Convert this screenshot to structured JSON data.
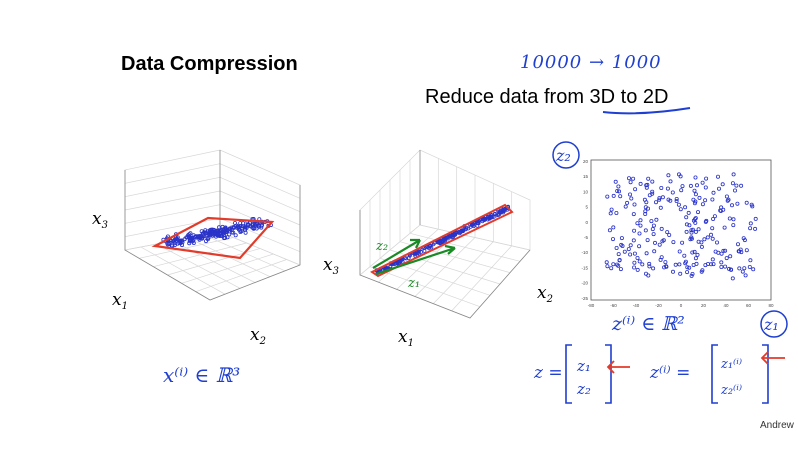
{
  "slide": {
    "title": "Data Compression",
    "subtitle_prefix": "Reduce data from ",
    "subtitle_highlight": "3D to 2D",
    "handwritten_top": "10000 → 1000",
    "footer": "Andrew"
  },
  "plot_left": {
    "x1_label": "x",
    "x1_sub": "1",
    "x2_label": "x",
    "x2_sub": "2",
    "x3_label": "x",
    "x3_sub": "3",
    "annotation": "x⁽ⁱ⁾ ∈ ℝ³"
  },
  "plot_middle": {
    "x1_label": "x",
    "x1_sub": "1",
    "x2_label": "x",
    "x2_sub": "2",
    "x3_label": "x",
    "x3_sub": "3",
    "z1_label": "z₁",
    "z2_label": "z₂"
  },
  "plot_right": {
    "z1_label": "z₁",
    "z2_label": "z₂",
    "annotation": "z⁽ⁱ⁾ ∈ ℝ²",
    "x_ticks": [
      "-80",
      "-60",
      "-40",
      "-20",
      "0",
      "20",
      "40",
      "60",
      "80"
    ],
    "y_ticks": [
      "20",
      "15",
      "10",
      "5",
      "0",
      "-5",
      "-10",
      "-15",
      "-20",
      "-25"
    ]
  },
  "equations": {
    "z_eq": "z =",
    "z_vec_top": "z₁",
    "z_vec_bottom": "z₂",
    "zi_eq": "z⁽ⁱ⁾ =",
    "zi_vec_top": "z₁⁽ⁱ⁾",
    "zi_vec_bottom": "z₂⁽ⁱ⁾"
  },
  "chart_data": {
    "type": "scatter",
    "title": "",
    "xlabel": "z1",
    "ylabel": "z2",
    "xlim": [
      -80,
      80
    ],
    "ylim": [
      -25,
      20
    ],
    "points_description": "about 250 points spread roughly uniformly across the plane"
  },
  "colors": {
    "points": "#2a33c8",
    "red": "#e23b2a",
    "blue_ink": "#1f3fd0",
    "green_ink": "#1a8a25"
  }
}
